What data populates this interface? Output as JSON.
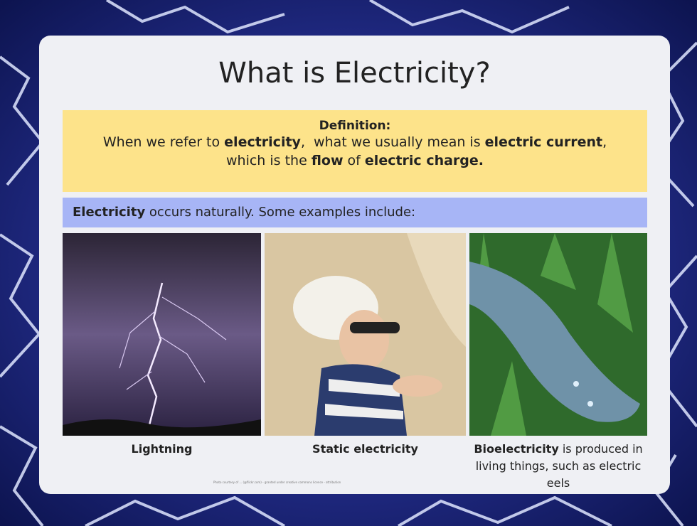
{
  "title": "What is Electricity?",
  "definition": {
    "heading": "Definition:",
    "lines": [
      [
        {
          "text": "When we refer to ",
          "bold": false
        },
        {
          "text": "electricity",
          "bold": true
        },
        {
          "text": ",  what we usually mean is ",
          "bold": false
        },
        {
          "text": "electric current",
          "bold": true
        },
        {
          "text": ",",
          "bold": false
        }
      ],
      [
        {
          "text": "which is the ",
          "bold": false
        },
        {
          "text": "flow",
          "bold": true
        },
        {
          "text": " of ",
          "bold": false
        },
        {
          "text": "electric charge.",
          "bold": true
        }
      ]
    ]
  },
  "intro": [
    {
      "text": "Electricity",
      "bold": true
    },
    {
      "text": " occurs naturally. Some examples include:",
      "bold": false
    }
  ],
  "examples": [
    {
      "caption": [
        {
          "text": "Lightning",
          "bold": true
        }
      ]
    },
    {
      "caption": [
        {
          "text": "Static electricity",
          "bold": true
        }
      ]
    },
    {
      "caption": [
        {
          "text": "Bioelectricity",
          "bold": true
        },
        {
          "text": " is produced in living things, such as electric eels",
          "bold": false
        }
      ]
    }
  ],
  "credit": "Photo courtesy of ... (@flickr.com) - granted under creative commons licence - attribution"
}
